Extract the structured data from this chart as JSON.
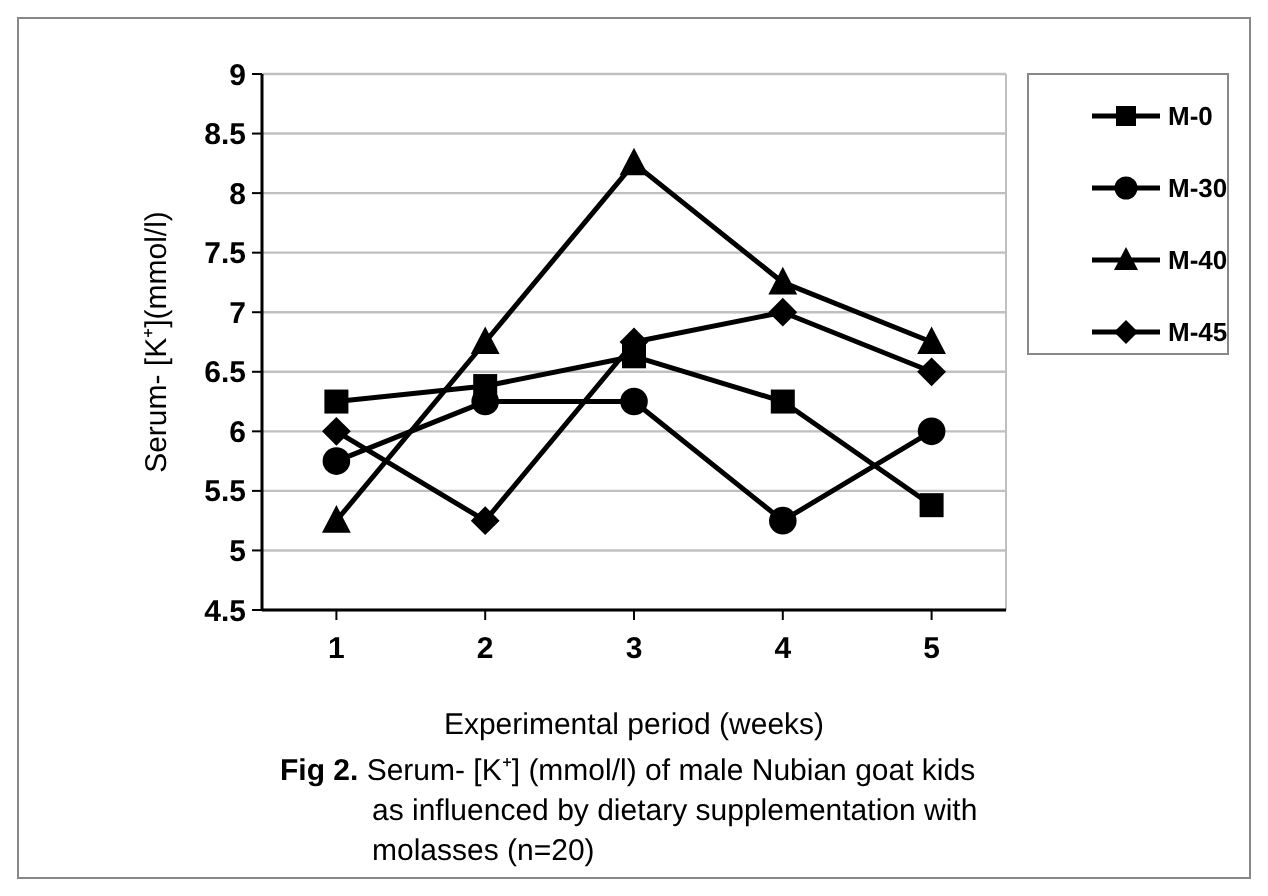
{
  "chart_data": {
    "type": "line",
    "xlabel": "Experimental period (weeks)",
    "ylabel": "Serum- [K⁺](mmol/l)",
    "categories": [
      "1",
      "2",
      "3",
      "4",
      "5"
    ],
    "series": [
      {
        "name": "M-0",
        "color": "#000000",
        "marker": "square",
        "values": [
          6.25,
          6.38,
          6.63,
          6.25,
          5.38
        ]
      },
      {
        "name": "M-30",
        "color": "#000000",
        "marker": "circle",
        "values": [
          5.75,
          6.25,
          6.25,
          5.25,
          6.0
        ]
      },
      {
        "name": "M-40",
        "color": "#000000",
        "marker": "triangle",
        "values": [
          5.25,
          6.75,
          8.25,
          7.25,
          6.75
        ]
      },
      {
        "name": "M-45",
        "color": "#000000",
        "marker": "diamond",
        "values": [
          6.0,
          5.25,
          6.75,
          7.0,
          6.5
        ]
      }
    ],
    "ylim": [
      4.5,
      9
    ],
    "yticks": [
      4.5,
      5,
      5.5,
      6,
      6.5,
      7,
      7.5,
      8,
      8.5,
      9
    ],
    "grid": "y",
    "legend": "right",
    "line_style": "solid",
    "annotations": [
      "Fig 2. Serum- [K⁺] (mmol/l) of male Nubian goat kids as influenced by dietary supplementation with molasses (n=20)"
    ]
  }
}
